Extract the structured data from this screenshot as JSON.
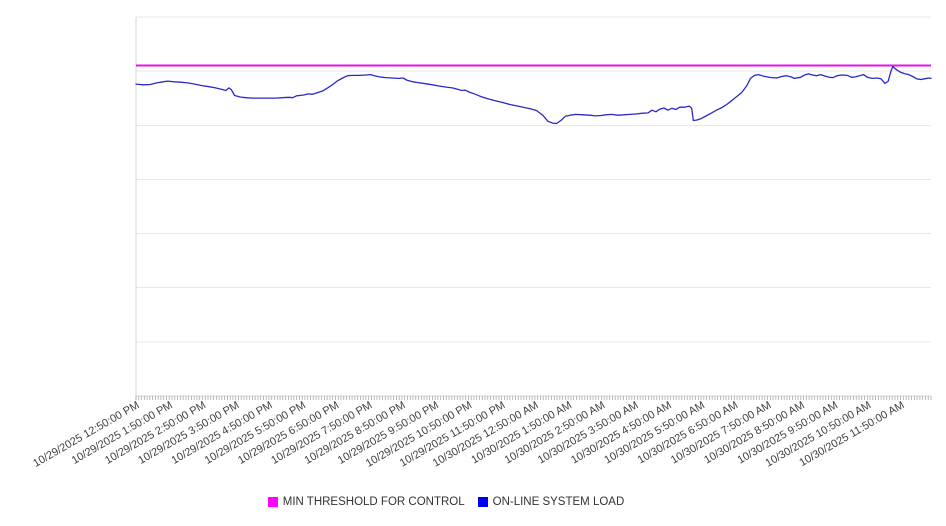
{
  "chart_data": {
    "type": "line",
    "title": "",
    "legend_position": "bottom",
    "colors": {
      "gridline": "#e7e7e7",
      "axis_border": "#d6d6d6",
      "minor_tick": "#a3a3a3",
      "tick_label": "#404040",
      "legend_text": "#333333"
    },
    "x_axis": {
      "minor_tick_count": 288,
      "tick_labels": [
        "10/29/2025 12:50:00 PM",
        "10/29/2025 1:50:00 PM",
        "10/29/2025 2:50:00 PM",
        "10/29/2025 3:50:00 PM",
        "10/29/2025 4:50:00 PM",
        "10/29/2025 5:50:00 PM",
        "10/29/2025 6:50:00 PM",
        "10/29/2025 7:50:00 PM",
        "10/29/2025 8:50:00 PM",
        "10/29/2025 9:50:00 PM",
        "10/29/2025 10:50:00 PM",
        "10/29/2025 11:50:00 PM",
        "10/30/2025 12:50:00 AM",
        "10/30/2025 1:50:00 AM",
        "10/30/2025 2:50:00 AM",
        "10/30/2025 3:50:00 AM",
        "10/30/2025 4:50:00 AM",
        "10/30/2025 5:50:00 AM",
        "10/30/2025 6:50:00 AM",
        "10/30/2025 7:50:00 AM",
        "10/30/2025 8:50:00 AM",
        "10/30/2025 9:50:00 AM",
        "10/30/2025 10:50:00 AM",
        "10/30/2025 11:50:00 AM"
      ]
    },
    "y_axis": {
      "min": 0,
      "max": 100,
      "gridline_count": 8,
      "labels_visible": false
    },
    "series": [
      {
        "name": "MIN THRESHOLD FOR CONTROL",
        "type": "threshold",
        "value": 87.2,
        "color": "#e812e8",
        "legend_color": "#ff00ff"
      },
      {
        "name": "ON-LINE SYSTEM LOAD",
        "type": "line",
        "color": "#2929c8",
        "legend_color": "#0000f0",
        "points": [
          [
            0,
            82.3
          ],
          [
            0.9,
            82.1
          ],
          [
            1.8,
            82.2
          ],
          [
            2.6,
            82.6
          ],
          [
            3.4,
            82.9
          ],
          [
            4,
            83.1
          ],
          [
            4.8,
            82.9
          ],
          [
            5.6,
            82.8
          ],
          [
            6.5,
            82.6
          ],
          [
            7.4,
            82.3
          ],
          [
            8.3,
            81.9
          ],
          [
            9.2,
            81.6
          ],
          [
            10,
            81.3
          ],
          [
            10.8,
            80.9
          ],
          [
            11.3,
            80.6
          ],
          [
            11.7,
            81.3
          ],
          [
            12,
            80.8
          ],
          [
            12.4,
            79.3
          ],
          [
            13.1,
            78.9
          ],
          [
            13.8,
            78.7
          ],
          [
            14.7,
            78.6
          ],
          [
            15.6,
            78.6
          ],
          [
            16.6,
            78.6
          ],
          [
            17.6,
            78.6
          ],
          [
            18.4,
            78.7
          ],
          [
            19.2,
            78.8
          ],
          [
            19.7,
            78.7
          ],
          [
            20.2,
            79.2
          ],
          [
            21,
            79.4
          ],
          [
            21.7,
            79.7
          ],
          [
            22.2,
            79.6
          ],
          [
            22.8,
            80
          ],
          [
            23.5,
            80.5
          ],
          [
            24.1,
            81.3
          ],
          [
            24.7,
            82.1
          ],
          [
            25.3,
            83.1
          ],
          [
            26,
            83.9
          ],
          [
            26.6,
            84.5
          ],
          [
            27.4,
            84.6
          ],
          [
            28.1,
            84.6
          ],
          [
            28.9,
            84.7
          ],
          [
            29.5,
            84.8
          ],
          [
            30,
            84.5
          ],
          [
            30.6,
            84.2
          ],
          [
            31.4,
            84
          ],
          [
            32.2,
            83.9
          ],
          [
            33.1,
            83.8
          ],
          [
            33.6,
            83.9
          ],
          [
            34.1,
            83.3
          ],
          [
            34.8,
            82.9
          ],
          [
            35.5,
            82.7
          ],
          [
            36.4,
            82.4
          ],
          [
            37.3,
            82.1
          ],
          [
            38.1,
            81.8
          ],
          [
            39,
            81.5
          ],
          [
            39.8,
            81.3
          ],
          [
            40.5,
            80.9
          ],
          [
            41,
            80.6
          ],
          [
            41.4,
            80.7
          ],
          [
            41.9,
            80.2
          ],
          [
            42.7,
            79.6
          ],
          [
            43.4,
            79
          ],
          [
            44.3,
            78.4
          ],
          [
            45.2,
            77.9
          ],
          [
            46,
            77.5
          ],
          [
            46.9,
            77
          ],
          [
            47.8,
            76.6
          ],
          [
            48.7,
            76.2
          ],
          [
            49.6,
            75.8
          ],
          [
            50.4,
            75.3
          ],
          [
            51.2,
            74
          ],
          [
            51.8,
            72.5
          ],
          [
            52.4,
            72
          ],
          [
            52.9,
            71.9
          ],
          [
            53.5,
            72.8
          ],
          [
            54,
            73.8
          ],
          [
            54.6,
            74.1
          ],
          [
            55.3,
            74.3
          ],
          [
            56.2,
            74.2
          ],
          [
            57.1,
            74.1
          ],
          [
            57.8,
            73.9
          ],
          [
            58.5,
            74
          ],
          [
            59.1,
            74.2
          ],
          [
            59.8,
            74.3
          ],
          [
            60.6,
            74.1
          ],
          [
            61.4,
            74.2
          ],
          [
            62.1,
            74.3
          ],
          [
            62.9,
            74.4
          ],
          [
            63.6,
            74.6
          ],
          [
            64.4,
            74.7
          ],
          [
            64.9,
            75.4
          ],
          [
            65.4,
            75
          ],
          [
            65.9,
            75.7
          ],
          [
            66.4,
            76
          ],
          [
            66.9,
            75.4
          ],
          [
            67.4,
            75.9
          ],
          [
            67.9,
            75.6
          ],
          [
            68.4,
            76.2
          ],
          [
            69,
            76.2
          ],
          [
            69.6,
            76.5
          ],
          [
            69.9,
            75.9
          ],
          [
            70.1,
            72.7
          ],
          [
            70.5,
            72.8
          ],
          [
            71.1,
            73.2
          ],
          [
            71.8,
            74
          ],
          [
            72.4,
            74.7
          ],
          [
            73,
            75.4
          ],
          [
            73.7,
            76.1
          ],
          [
            74.3,
            76.9
          ],
          [
            74.9,
            77.9
          ],
          [
            75.5,
            78.9
          ],
          [
            76.2,
            80.1
          ],
          [
            76.8,
            81.8
          ],
          [
            77.3,
            83.8
          ],
          [
            77.8,
            84.6
          ],
          [
            78.3,
            84.8
          ],
          [
            78.9,
            84.4
          ],
          [
            79.4,
            84.2
          ],
          [
            79.9,
            84
          ],
          [
            80.6,
            83.9
          ],
          [
            81.2,
            84.3
          ],
          [
            81.8,
            84.5
          ],
          [
            82.4,
            84.2
          ],
          [
            82.8,
            83.8
          ],
          [
            83.6,
            84.1
          ],
          [
            84.1,
            84.7
          ],
          [
            84.6,
            85
          ],
          [
            85.1,
            84.7
          ],
          [
            85.6,
            84.5
          ],
          [
            86.1,
            84.8
          ],
          [
            86.7,
            84.4
          ],
          [
            87.2,
            84.1
          ],
          [
            87.7,
            84
          ],
          [
            88.2,
            84.5
          ],
          [
            88.8,
            84.7
          ],
          [
            89.5,
            84.6
          ],
          [
            90,
            84.1
          ],
          [
            90.5,
            84.2
          ],
          [
            91,
            84.5
          ],
          [
            91.5,
            84.8
          ],
          [
            92,
            84.1
          ],
          [
            92.6,
            83.8
          ],
          [
            93.2,
            83.9
          ],
          [
            93.7,
            83.7
          ],
          [
            94.2,
            82.5
          ],
          [
            94.6,
            83
          ],
          [
            95,
            86
          ],
          [
            95.2,
            86.9
          ],
          [
            95.6,
            86.2
          ],
          [
            96.1,
            85.5
          ],
          [
            96.6,
            85.1
          ],
          [
            97.2,
            84.8
          ],
          [
            97.7,
            84.3
          ],
          [
            98.2,
            83.7
          ],
          [
            98.7,
            83.5
          ],
          [
            99.2,
            83.7
          ],
          [
            99.7,
            83.9
          ],
          [
            100,
            83.8
          ]
        ]
      }
    ]
  }
}
